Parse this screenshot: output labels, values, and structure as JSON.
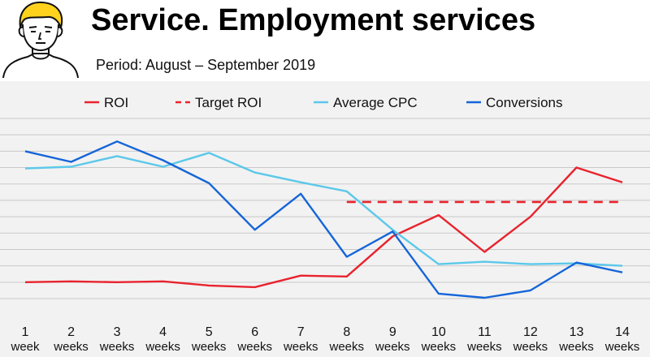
{
  "header": {
    "title": "Service. Employment services",
    "subtitle": "Period: August – September 2019",
    "avatar_icon": "person-avatar-icon"
  },
  "colors": {
    "roi": "#e8232e",
    "target_roi": "#e8232e",
    "average_cpc": "#5bc8ea",
    "conversions": "#1565d8",
    "grid": "#c9c9c9",
    "background": "#f2f2f2",
    "avatar_hair": "#ffd21e"
  },
  "chart_data": {
    "type": "line",
    "title": "",
    "xlabel": "",
    "ylabel": "",
    "categories": [
      {
        "num": "1",
        "unit": "week"
      },
      {
        "num": "2",
        "unit": "weeks"
      },
      {
        "num": "3",
        "unit": "weeks"
      },
      {
        "num": "4",
        "unit": "weeks"
      },
      {
        "num": "5",
        "unit": "weeks"
      },
      {
        "num": "6",
        "unit": "weeks"
      },
      {
        "num": "7",
        "unit": "weeks"
      },
      {
        "num": "8",
        "unit": "weeks"
      },
      {
        "num": "9",
        "unit": "weeks"
      },
      {
        "num": "10",
        "unit": "weeks"
      },
      {
        "num": "11",
        "unit": "weeks"
      },
      {
        "num": "12",
        "unit": "weeks"
      },
      {
        "num": "13",
        "unit": "weeks"
      },
      {
        "num": "14",
        "unit": "weeks"
      }
    ],
    "ylim": [
      0,
      11
    ],
    "grid_lines": 11,
    "gridlines": true,
    "y_tick_labels": false,
    "legend_position": "top",
    "series": [
      {
        "name": "ROI",
        "key": "roi",
        "style": "solid",
        "values": [
          1.0,
          1.05,
          1.0,
          1.05,
          0.8,
          0.7,
          1.4,
          1.35,
          3.8,
          5.1,
          2.85,
          5.0,
          8.0,
          7.1
        ]
      },
      {
        "name": "Target ROI",
        "key": "target_roi",
        "style": "dashed",
        "values": [
          null,
          null,
          null,
          null,
          null,
          null,
          null,
          5.9,
          5.9,
          5.9,
          5.9,
          5.9,
          5.9,
          5.9
        ]
      },
      {
        "name": "Average CPC",
        "key": "average_cpc",
        "style": "solid",
        "values": [
          7.95,
          8.05,
          8.7,
          8.05,
          8.9,
          7.7,
          7.1,
          6.55,
          4.2,
          2.1,
          2.25,
          2.1,
          2.15,
          2.0
        ]
      },
      {
        "name": "Conversions",
        "key": "conversions",
        "style": "solid",
        "values": [
          9.0,
          8.35,
          9.6,
          8.45,
          7.05,
          4.2,
          6.4,
          2.55,
          4.1,
          0.3,
          0.05,
          0.5,
          2.2,
          1.6
        ]
      }
    ]
  }
}
